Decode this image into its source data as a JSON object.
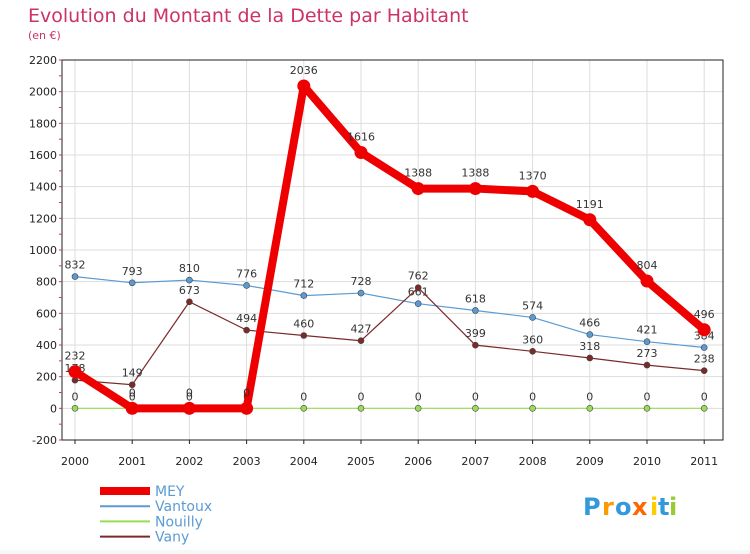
{
  "chart_data": {
    "type": "line",
    "title": "Evolution du Montant de la Dette par Habitant",
    "subtitle": "(en €)",
    "xlabel": "",
    "ylabel": "",
    "x": [
      "2000",
      "2001",
      "2002",
      "2003",
      "2004",
      "2005",
      "2006",
      "2007",
      "2008",
      "2009",
      "2010",
      "2011"
    ],
    "ylim": [
      -200,
      2200
    ],
    "yticks": [
      -200,
      0,
      200,
      400,
      600,
      800,
      1000,
      1200,
      1400,
      1600,
      1800,
      2000,
      2200
    ],
    "grid": true,
    "legend_position": "bottom-left",
    "series": [
      {
        "name": "Vantoux",
        "color": "#5b9bd5",
        "values": [
          832,
          793,
          810,
          776,
          712,
          728,
          661,
          618,
          574,
          466,
          421,
          384
        ],
        "labels": [
          "832",
          "793",
          "810",
          "776",
          "712",
          "728",
          "661",
          "618",
          "574",
          "466",
          "421",
          "384"
        ]
      },
      {
        "name": "Vany",
        "color": "#7b2a2a",
        "values": [
          178,
          149,
          673,
          494,
          460,
          427,
          762,
          399,
          360,
          318,
          273,
          238
        ],
        "labels": [
          "178",
          "149",
          "673",
          "494",
          "460",
          "427",
          "762",
          "399",
          "360",
          "318",
          "273",
          "238"
        ]
      },
      {
        "name": "Nouilly",
        "color": "#99dd55",
        "values": [
          0,
          0,
          0,
          0,
          0,
          0,
          0,
          0,
          0,
          0,
          0,
          0
        ],
        "labels": [
          "0",
          "0",
          "0",
          "0",
          "0",
          "0",
          "0",
          "0",
          "0",
          "0",
          "0",
          "0"
        ]
      },
      {
        "name": "MEY",
        "color": "#ee0000",
        "values": [
          232,
          0,
          0,
          0,
          2036,
          1616,
          1388,
          1388,
          1370,
          1191,
          804,
          496
        ],
        "labels": [
          "232",
          "0",
          "0",
          "0",
          "2036",
          "1616",
          "1388",
          "1388",
          "1370",
          "1191",
          "804",
          "496"
        ]
      }
    ],
    "legend_order": [
      "MEY",
      "Vantoux",
      "Nouilly",
      "Vany"
    ]
  },
  "logo": {
    "text": "Proxiti",
    "letters": [
      "P",
      "r",
      "o",
      "x",
      "i",
      "t",
      "i"
    ],
    "colors": [
      "#3399dd",
      "#ff9900",
      "#3399dd",
      "#ff6600",
      "#ffcc00",
      "#3399dd",
      "#99cc33"
    ]
  },
  "colors": {
    "title": "#cc3366",
    "axis_text": "#222222",
    "grid": "#dddddd",
    "frame": "#222222"
  }
}
